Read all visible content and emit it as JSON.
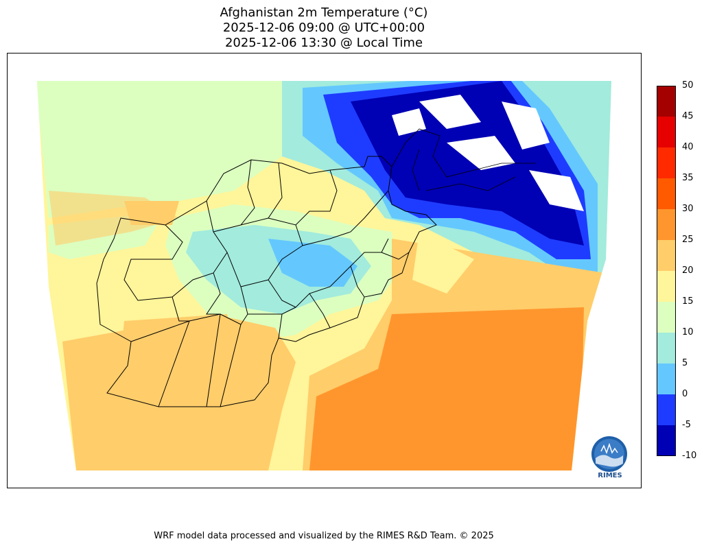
{
  "titles": {
    "line1": "Afghanistan 2m Temperature (°C)",
    "line2": "2025-12-06 09:00 @ UTC+00:00",
    "line3": "2025-12-06 13:30 @ Local Time"
  },
  "colorbar": {
    "levels": [
      "50",
      "45",
      "40",
      "35",
      "30",
      "25",
      "20",
      "15",
      "10",
      "5",
      "0",
      "-5",
      "-10"
    ],
    "colors": [
      "#a50000",
      "#e60000",
      "#ff2a00",
      "#ff5a00",
      "#ff962d",
      "#ffcd6a",
      "#fff59a",
      "#dcffc0",
      "#a2ebdd",
      "#64c8ff",
      "#1e3cff",
      "#0000b4"
    ]
  },
  "legend_icon": "color-scale-icon",
  "logo": {
    "text": "RIMES",
    "icon": "rimes-logo-icon"
  },
  "footer": "WRF model data processed and visualized by the RIMES R&D Team. © 2025"
}
